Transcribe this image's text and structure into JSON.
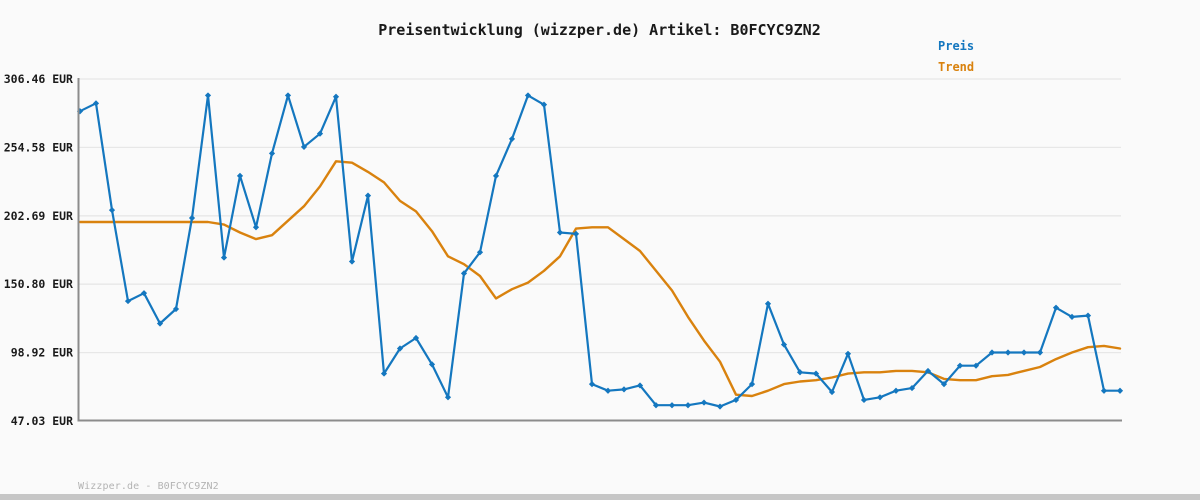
{
  "chart_data": {
    "type": "line",
    "title": "Preisentwicklung (wizzper.de) Artikel: B0FCYC9ZN2",
    "currency": "EUR",
    "xlabel": "",
    "ylabel": "",
    "grid": true,
    "y_range": [
      47.03,
      306.46
    ],
    "y_ticks": [
      {
        "label": "306.46 EUR",
        "value": 306.46
      },
      {
        "label": "254.58 EUR",
        "value": 254.58
      },
      {
        "label": "202.69 EUR",
        "value": 202.69
      },
      {
        "label": "150.80 EUR",
        "value": 150.8
      },
      {
        "label": "98.92 EUR",
        "value": 98.92
      },
      {
        "label": "47.03 EUR",
        "value": 47.03
      }
    ],
    "legend": {
      "position": "top-right",
      "entries": [
        {
          "label": "Preis",
          "color": "#1477bf"
        },
        {
          "label": "Trend",
          "color": "#d9820e"
        }
      ]
    },
    "series": [
      {
        "name": "Preis",
        "color": "#1477bf",
        "marker": "diamond",
        "values": [
          282,
          288,
          207,
          138,
          144,
          121,
          132,
          201,
          294,
          171,
          233,
          194,
          250,
          294,
          255,
          265,
          293,
          168,
          218,
          83,
          102,
          110,
          90,
          65,
          159,
          175,
          233,
          261,
          294,
          287,
          190,
          189,
          75,
          70,
          71,
          74,
          59,
          59,
          59,
          61,
          58,
          63,
          75,
          136,
          105,
          84,
          83,
          69,
          98,
          63,
          65,
          70,
          72,
          85,
          75,
          89,
          89,
          99,
          99,
          99,
          99,
          133,
          126,
          127,
          70,
          70
        ]
      },
      {
        "name": "Trend",
        "color": "#d9820e",
        "marker": "none",
        "values": [
          198,
          198,
          198,
          198,
          198,
          198,
          198,
          198,
          198,
          196,
          190,
          185,
          188,
          199,
          210,
          225,
          244,
          243,
          236,
          228,
          214,
          206,
          191,
          172,
          166,
          157,
          140,
          147,
          152,
          161,
          172,
          193,
          194,
          194,
          185,
          176,
          161,
          146,
          126,
          108,
          92,
          67,
          66,
          70,
          75,
          77,
          78,
          80,
          83,
          84,
          84,
          85,
          85,
          84,
          79,
          78,
          78,
          81,
          82,
          85,
          88,
          94,
          99,
          103,
          104,
          102
        ]
      }
    ]
  },
  "footer": {
    "text": "Wizzper.de - B0FCYC9ZN2"
  },
  "colors": {
    "background": "#fafafa",
    "grid": "#e7e7e7",
    "axis": "#8c8c8c",
    "tick_text": "#1a1a1a",
    "title_text": "#1a1a1a",
    "watermark": "#b3b3b3",
    "bottom_bar": "#c6c6c6"
  }
}
